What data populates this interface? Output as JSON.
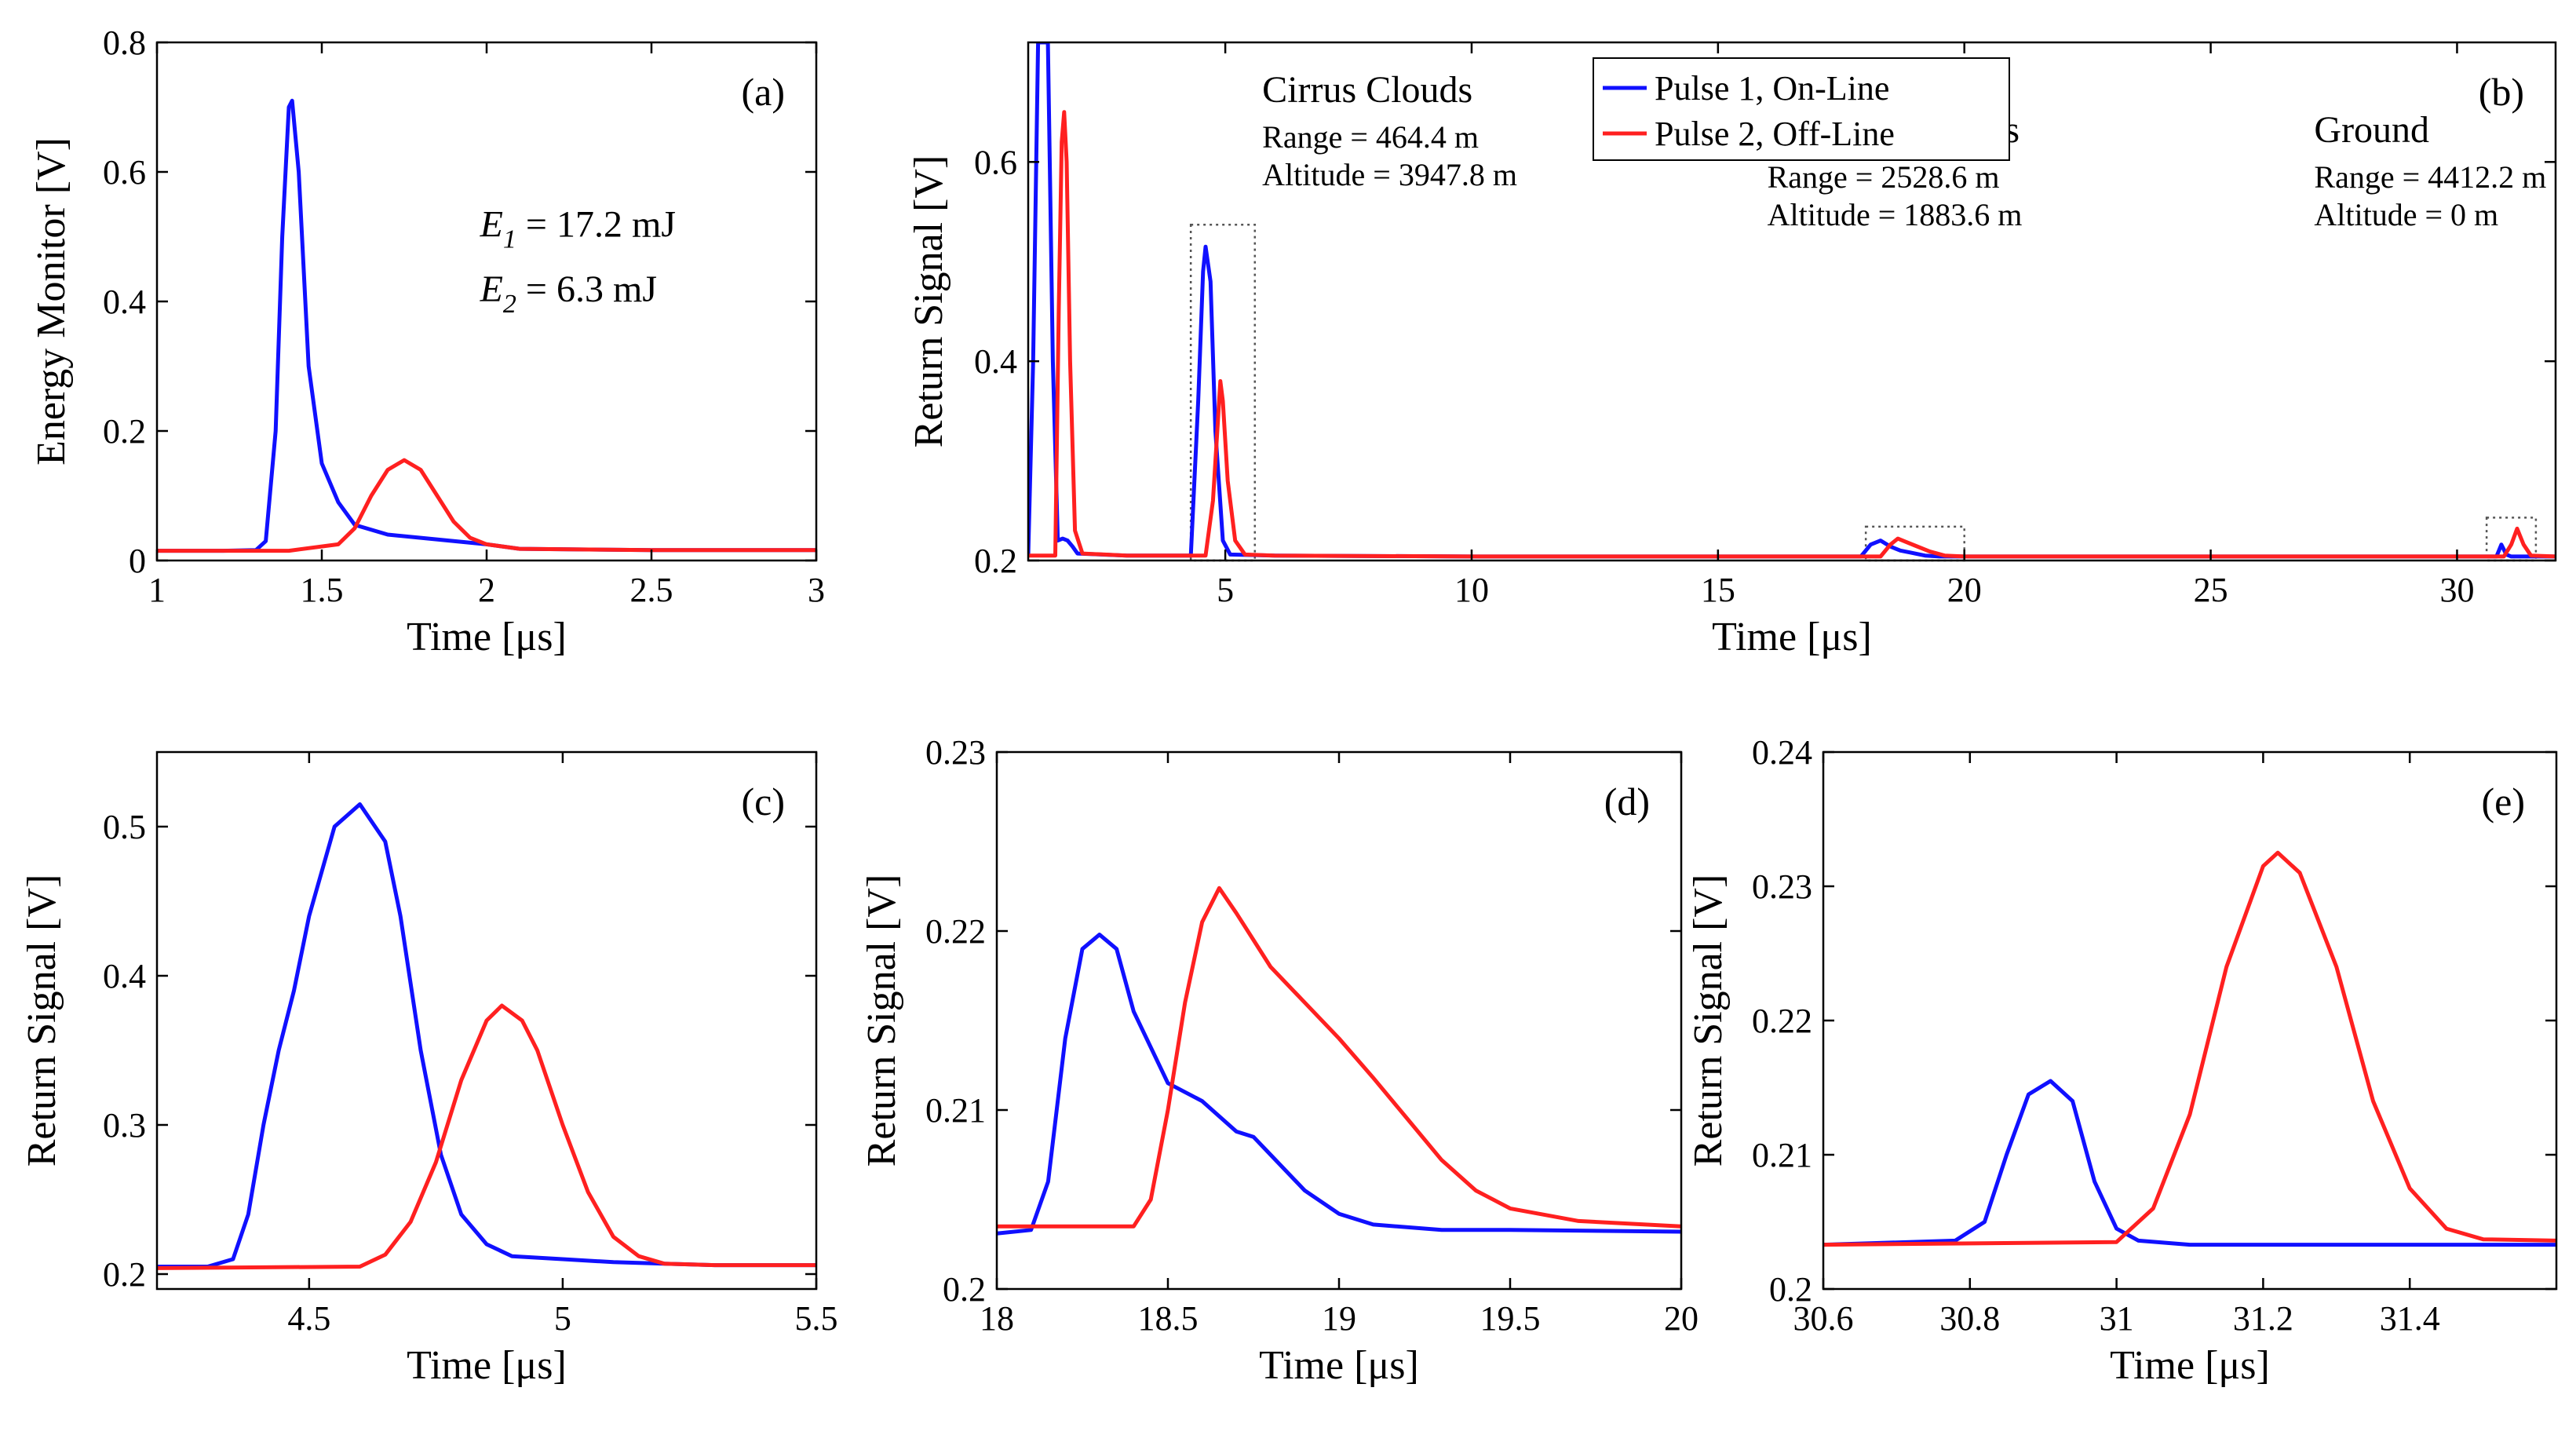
{
  "series_names": [
    "Pulse 1, On-Line",
    "Pulse 2, Off-Line"
  ],
  "colors": {
    "pulse1": "#1010ff",
    "pulse2": "#ff2020",
    "box": "#555555"
  },
  "chart_data": [
    {
      "id": "a",
      "type": "line",
      "panel_label": "(a)",
      "xlabel": "Time [μs]",
      "ylabel": "Energy Monitor [V]",
      "xlim": [
        1,
        3
      ],
      "ylim": [
        0,
        0.8
      ],
      "xticks": [
        1,
        1.5,
        2,
        2.5,
        3
      ],
      "xtick_labels": [
        "1",
        "1.5",
        "2",
        "2.5",
        "3"
      ],
      "yticks": [
        0,
        0.2,
        0.4,
        0.6,
        0.8
      ],
      "ytick_labels": [
        "0",
        "0.2",
        "0.4",
        "0.6",
        "0.8"
      ],
      "texts": [
        {
          "sym": "E",
          "sub": "1",
          "rest": " = 17.2 mJ",
          "x": 1.98,
          "y": 0.5
        },
        {
          "sym": "E",
          "sub": "2",
          "rest": " = 6.3 mJ",
          "x": 1.98,
          "y": 0.4
        }
      ],
      "series": [
        {
          "name": "Pulse 1, On-Line",
          "color": "#1010ff",
          "x": [
            1.0,
            1.2,
            1.3,
            1.33,
            1.36,
            1.38,
            1.4,
            1.41,
            1.43,
            1.46,
            1.5,
            1.55,
            1.6,
            1.7,
            1.8,
            2.0,
            2.1,
            2.5,
            3.0
          ],
          "y": [
            0.015,
            0.015,
            0.016,
            0.03,
            0.2,
            0.5,
            0.7,
            0.71,
            0.6,
            0.3,
            0.15,
            0.09,
            0.055,
            0.04,
            0.035,
            0.025,
            0.018,
            0.016,
            0.016
          ]
        },
        {
          "name": "Pulse 2, Off-Line",
          "color": "#ff2020",
          "x": [
            1.0,
            1.4,
            1.55,
            1.6,
            1.65,
            1.7,
            1.75,
            1.8,
            1.85,
            1.9,
            1.95,
            2.0,
            2.1,
            2.5,
            3.0
          ],
          "y": [
            0.015,
            0.015,
            0.025,
            0.05,
            0.1,
            0.14,
            0.155,
            0.14,
            0.1,
            0.06,
            0.035,
            0.025,
            0.018,
            0.016,
            0.016
          ]
        }
      ]
    },
    {
      "id": "b",
      "type": "line",
      "panel_label": "(b)",
      "xlabel": "Time [μs]",
      "ylabel": "Return Signal [V]",
      "xlim": [
        1,
        32
      ],
      "ylim": [
        0.2,
        0.72
      ],
      "xticks": [
        5,
        10,
        15,
        20,
        25,
        30
      ],
      "xtick_labels": [
        "5",
        "10",
        "15",
        "20",
        "25",
        "30"
      ],
      "yticks": [
        0.2,
        0.4,
        0.6
      ],
      "ytick_labels": [
        "0.2",
        "0.4",
        "0.6"
      ],
      "legend": {
        "position": "top-center",
        "entries": [
          "Pulse 1, On-Line",
          "Pulse 2, Off-Line"
        ]
      },
      "annotations": [
        {
          "title": "Cirrus Clouds",
          "lines": [
            "Range = 464.4 m",
            "Altitude = 3947.8 m"
          ],
          "x": 5.75,
          "y": 0.66
        },
        {
          "title": "Cumulus Clouds",
          "lines": [
            "Range = 2528.6 m",
            "Altitude = 1883.6 m"
          ],
          "x": 16.0,
          "y": 0.62
        },
        {
          "title": "Ground",
          "lines": [
            "Range = 4412.2 m",
            "Altitude = 0 m"
          ],
          "x": 27.1,
          "y": 0.62
        }
      ],
      "boxes": [
        {
          "x": [
            4.3,
            5.6
          ],
          "y": [
            0.2,
            0.537
          ]
        },
        {
          "x": [
            18.0,
            20.0
          ],
          "y": [
            0.2,
            0.234
          ]
        },
        {
          "x": [
            30.6,
            31.6
          ],
          "y": [
            0.2,
            0.243
          ]
        }
      ],
      "series": [
        {
          "name": "Pulse 1, On-Line",
          "color": "#1010ff",
          "x": [
            1.0,
            1.1,
            1.2,
            1.25,
            1.3,
            1.35,
            1.4,
            1.5,
            1.6,
            1.7,
            1.8,
            1.9,
            2.0,
            3.0,
            4.0,
            4.3,
            4.45,
            4.55,
            4.6,
            4.7,
            4.8,
            4.95,
            5.1,
            6.0,
            10.0,
            17.9,
            18.1,
            18.3,
            18.5,
            18.7,
            18.9,
            19.2,
            19.5,
            20.0,
            25.0,
            30.8,
            30.9,
            31.0,
            31.1,
            32.0
          ],
          "y": [
            0.205,
            0.4,
            0.72,
            0.72,
            0.72,
            0.72,
            0.72,
            0.4,
            0.22,
            0.222,
            0.22,
            0.214,
            0.207,
            0.205,
            0.205,
            0.205,
            0.36,
            0.49,
            0.515,
            0.48,
            0.33,
            0.22,
            0.206,
            0.205,
            0.204,
            0.204,
            0.216,
            0.22,
            0.214,
            0.21,
            0.208,
            0.205,
            0.204,
            0.204,
            0.204,
            0.204,
            0.216,
            0.206,
            0.204,
            0.204
          ]
        },
        {
          "name": "Pulse 2, Off-Line",
          "color": "#ff2020",
          "x": [
            1.0,
            1.55,
            1.62,
            1.68,
            1.73,
            1.78,
            1.85,
            1.95,
            2.1,
            3.0,
            4.6,
            4.75,
            4.85,
            4.9,
            4.95,
            5.05,
            5.2,
            5.4,
            6.0,
            10.0,
            18.3,
            18.5,
            18.65,
            18.8,
            19.0,
            19.3,
            19.6,
            20.0,
            25.0,
            30.95,
            31.1,
            31.22,
            31.35,
            31.5,
            32.0
          ],
          "y": [
            0.205,
            0.205,
            0.45,
            0.62,
            0.65,
            0.6,
            0.4,
            0.23,
            0.207,
            0.205,
            0.205,
            0.26,
            0.34,
            0.38,
            0.36,
            0.28,
            0.22,
            0.206,
            0.205,
            0.204,
            0.204,
            0.216,
            0.222,
            0.219,
            0.215,
            0.209,
            0.205,
            0.204,
            0.204,
            0.204,
            0.216,
            0.232,
            0.216,
            0.205,
            0.204
          ]
        }
      ]
    },
    {
      "id": "c",
      "type": "line",
      "panel_label": "(c)",
      "xlabel": "Time [μs]",
      "ylabel": "Return Signal [V]",
      "xlim": [
        4.2,
        5.5
      ],
      "ylim": [
        0.19,
        0.55
      ],
      "xticks": [
        4.5,
        5,
        5.5
      ],
      "xtick_labels": [
        "4.5",
        "5",
        "5.5"
      ],
      "yticks": [
        0.2,
        0.3,
        0.4,
        0.5
      ],
      "ytick_labels": [
        "0.2",
        "0.3",
        "0.4",
        "0.5"
      ],
      "series": [
        {
          "name": "Pulse 1, On-Line",
          "color": "#1010ff",
          "x": [
            4.2,
            4.3,
            4.35,
            4.38,
            4.41,
            4.44,
            4.47,
            4.5,
            4.55,
            4.6,
            4.65,
            4.68,
            4.72,
            4.76,
            4.8,
            4.85,
            4.9,
            5.0,
            5.1,
            5.2,
            5.3,
            5.5
          ],
          "y": [
            0.205,
            0.205,
            0.21,
            0.24,
            0.3,
            0.35,
            0.39,
            0.44,
            0.5,
            0.515,
            0.49,
            0.44,
            0.35,
            0.28,
            0.24,
            0.22,
            0.212,
            0.21,
            0.208,
            0.207,
            0.206,
            0.206
          ]
        },
        {
          "name": "Pulse 2, Off-Line",
          "color": "#ff2020",
          "x": [
            4.2,
            4.6,
            4.65,
            4.7,
            4.75,
            4.8,
            4.85,
            4.88,
            4.92,
            4.95,
            5.0,
            5.05,
            5.1,
            5.15,
            5.2,
            5.3,
            5.5
          ],
          "y": [
            0.204,
            0.205,
            0.213,
            0.235,
            0.275,
            0.33,
            0.37,
            0.38,
            0.37,
            0.35,
            0.3,
            0.255,
            0.225,
            0.212,
            0.207,
            0.206,
            0.206
          ]
        }
      ]
    },
    {
      "id": "d",
      "type": "line",
      "panel_label": "(d)",
      "xlabel": "Time [μs]",
      "ylabel": "Return Signal [V]",
      "xlim": [
        18,
        20
      ],
      "ylim": [
        0.2,
        0.23
      ],
      "xticks": [
        18,
        18.5,
        19,
        19.5,
        20
      ],
      "xtick_labels": [
        "18",
        "18.5",
        "19",
        "19.5",
        "20"
      ],
      "yticks": [
        0.2,
        0.21,
        0.22,
        0.23
      ],
      "ytick_labels": [
        "0.2",
        "0.21",
        "0.22",
        "0.23"
      ],
      "series": [
        {
          "name": "Pulse 1, On-Line",
          "color": "#1010ff",
          "x": [
            18.0,
            18.1,
            18.15,
            18.2,
            18.25,
            18.3,
            18.35,
            18.4,
            18.45,
            18.5,
            18.6,
            18.7,
            18.75,
            18.8,
            18.9,
            19.0,
            19.1,
            19.3,
            19.5,
            20.0
          ],
          "y": [
            0.2031,
            0.2033,
            0.206,
            0.214,
            0.219,
            0.2198,
            0.219,
            0.2155,
            0.2135,
            0.2115,
            0.2105,
            0.2088,
            0.2085,
            0.2075,
            0.2055,
            0.2042,
            0.2036,
            0.2033,
            0.2033,
            0.2032
          ]
        },
        {
          "name": "Pulse 2, Off-Line",
          "color": "#ff2020",
          "x": [
            18.0,
            18.4,
            18.45,
            18.5,
            18.55,
            18.6,
            18.65,
            18.7,
            18.75,
            18.8,
            18.9,
            19.0,
            19.1,
            19.2,
            19.3,
            19.4,
            19.5,
            19.7,
            20.0
          ],
          "y": [
            0.2035,
            0.2035,
            0.205,
            0.21,
            0.216,
            0.2205,
            0.2224,
            0.221,
            0.2195,
            0.218,
            0.216,
            0.214,
            0.2118,
            0.2095,
            0.2072,
            0.2055,
            0.2045,
            0.2038,
            0.2035
          ]
        }
      ]
    },
    {
      "id": "e",
      "type": "line",
      "panel_label": "(e)",
      "xlabel": "Time [μs]",
      "ylabel": "Return Signal [V]",
      "xlim": [
        30.6,
        31.6
      ],
      "ylim": [
        0.2,
        0.24
      ],
      "xticks": [
        30.6,
        30.8,
        31,
        31.2,
        31.4
      ],
      "xtick_labels": [
        "30.6",
        "30.8",
        "31",
        "31.2",
        "31.4"
      ],
      "yticks": [
        0.2,
        0.21,
        0.22,
        0.23,
        0.24
      ],
      "ytick_labels": [
        "0.2",
        "0.21",
        "0.22",
        "0.23",
        "0.24"
      ],
      "series": [
        {
          "name": "Pulse 1, On-Line",
          "color": "#1010ff",
          "x": [
            30.6,
            30.78,
            30.82,
            30.85,
            30.88,
            30.91,
            30.94,
            30.97,
            31.0,
            31.03,
            31.1,
            31.6
          ],
          "y": [
            0.2033,
            0.2036,
            0.205,
            0.21,
            0.2145,
            0.2155,
            0.214,
            0.208,
            0.2045,
            0.2036,
            0.2033,
            0.2033
          ]
        },
        {
          "name": "Pulse 2, Off-Line",
          "color": "#ff2020",
          "x": [
            30.6,
            31.0,
            31.05,
            31.1,
            31.15,
            31.2,
            31.22,
            31.25,
            31.3,
            31.35,
            31.4,
            31.45,
            31.5,
            31.6
          ],
          "y": [
            0.2033,
            0.2035,
            0.206,
            0.213,
            0.224,
            0.2315,
            0.2325,
            0.231,
            0.224,
            0.214,
            0.2075,
            0.2045,
            0.2037,
            0.2036
          ]
        }
      ]
    }
  ]
}
